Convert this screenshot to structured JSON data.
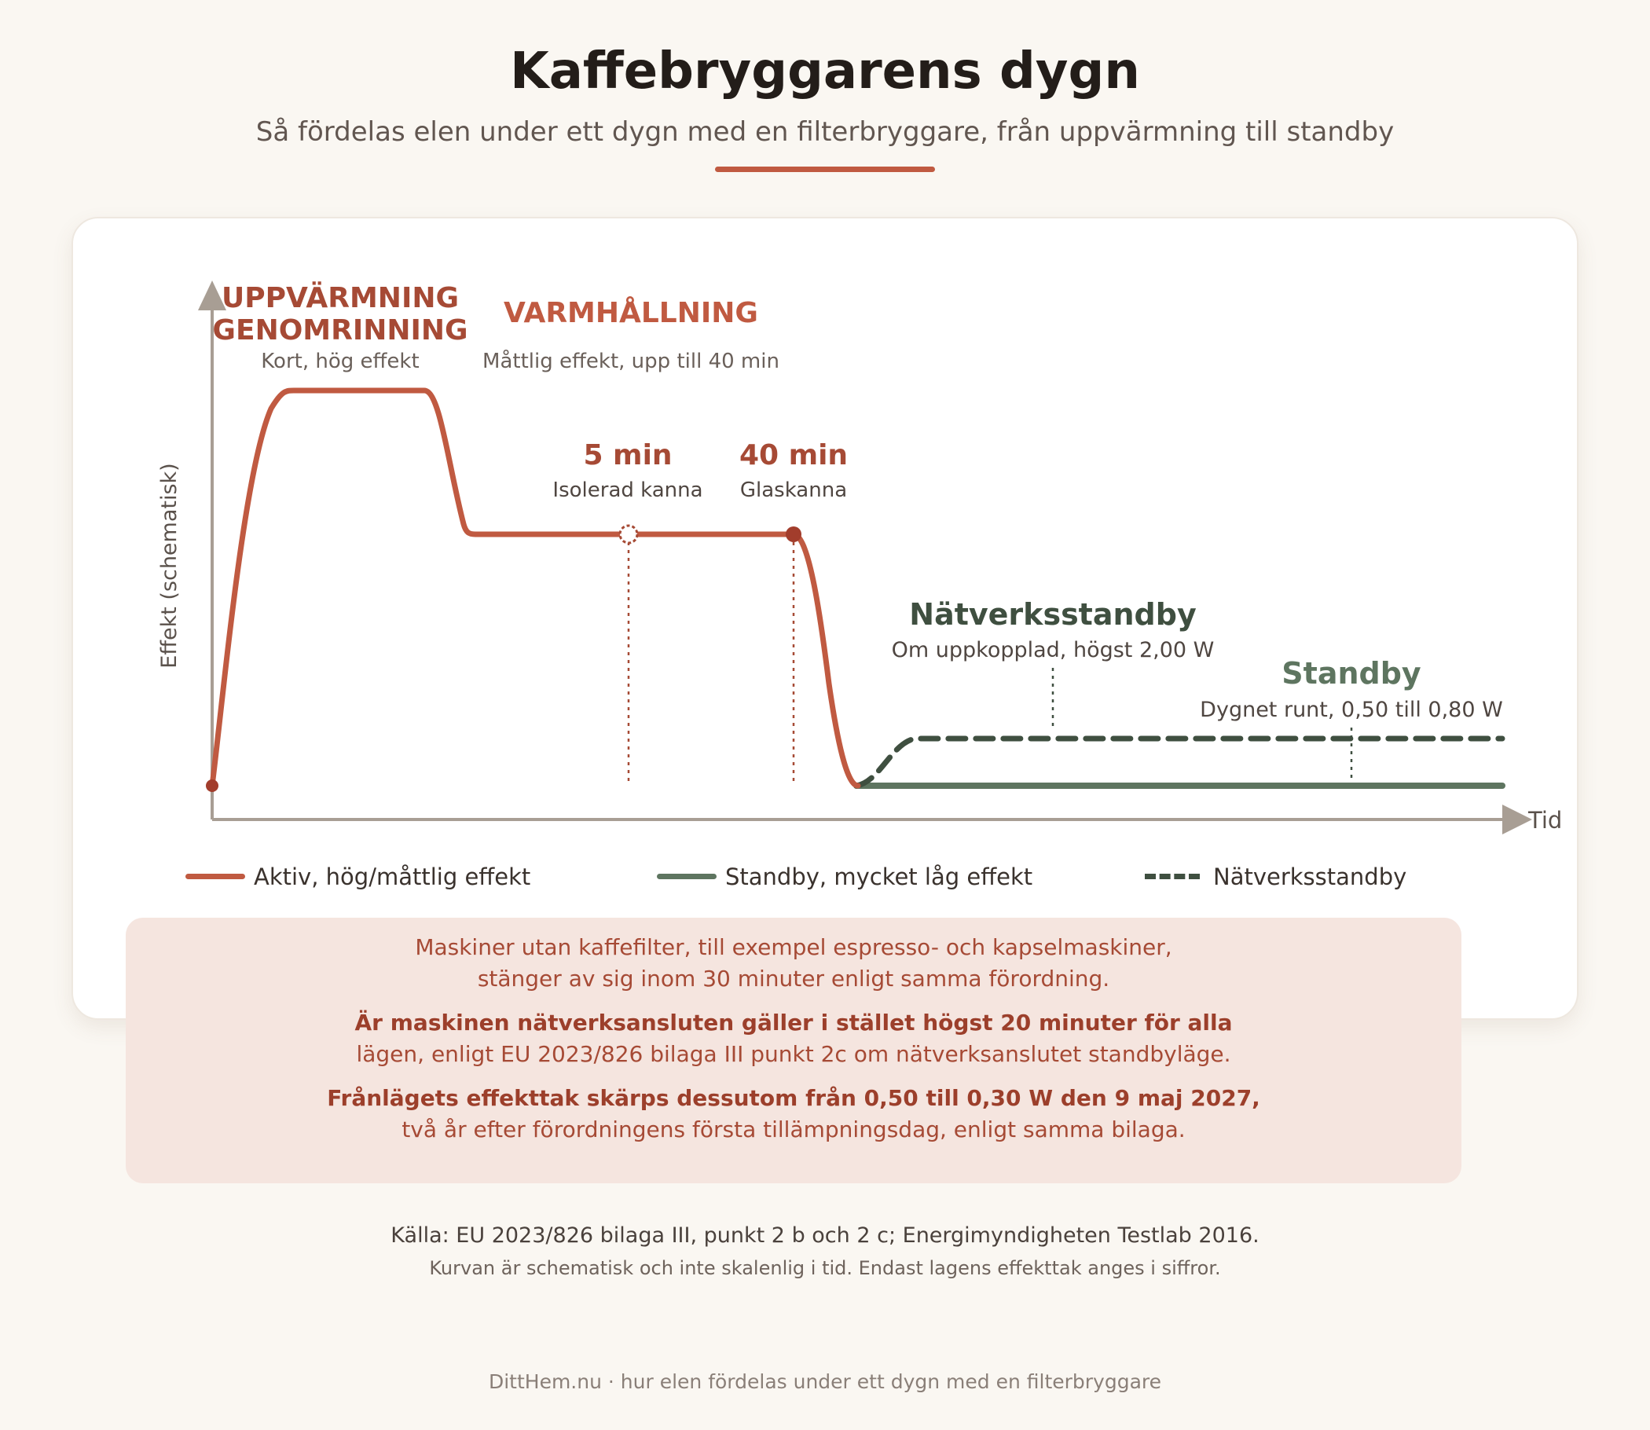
{
  "header": {
    "title": "Kaffebryggarens dygn",
    "subtitle": "Så fördelas elen under ett dygn med en filterbryggare, från uppvärmning till standby"
  },
  "chart": {
    "y_axis_label": "Effekt (schematisk)",
    "x_axis_label": "Tid",
    "phases": {
      "heating_title_line1": "UPPVÄRMNING",
      "heating_title_line2": "GENOMRINNING",
      "heating_sub": "Kort, hög effekt",
      "keepwarm_title": "VARMHÅLLNING",
      "keepwarm_sub": "Måttlig effekt, upp till 40 min"
    },
    "markers": {
      "insulated_time": "5 min",
      "insulated_label": "Isolerad kanna",
      "glass_time": "40 min",
      "glass_label": "Glaskanna"
    },
    "standby": {
      "network_title": "Nätverksstandby",
      "network_sub": "Om uppkopplad, högst 2,00 W",
      "standby_title": "Standby",
      "standby_sub": "Dygnet runt, 0,50 till 0,80 W"
    },
    "colors": {
      "active": "#c05a41",
      "active_dark": "#a23d2c",
      "standby": "#5e7560",
      "network": "#3f4f40",
      "axis": "#a89e94"
    }
  },
  "legend": {
    "active": "Aktiv, hög/måttlig effekt",
    "standby": "Standby, mycket låg effekt",
    "network": "Nätverksstandby"
  },
  "note": {
    "p1_line1": "Maskiner utan kaffefilter, till exempel espresso- och kapselmaskiner,",
    "p1_line2": "stänger av sig inom 30 minuter enligt samma förordning.",
    "p2_bold": "Är maskinen nätverksansluten gäller i stället högst 20 minuter för alla",
    "p2_line2": "lägen, enligt EU 2023/826 bilaga III punkt 2c om nätverksanslutet standbyläge.",
    "p3_bold": "Frånlägets effekttak skärps dessutom från 0,50 till 0,30 W den 9 maj 2027,",
    "p3_line2": "två år efter förordningens första tillämpningsdag, enligt samma bilaga."
  },
  "source": "Källa: EU 2023/826 bilaga III, punkt 2 b och 2 c; Energimyndigheten Testlab 2016.",
  "disclaimer": "Kurvan är schematisk och inte skalenlig i tid. Endast lagens effekttak anges i siffror.",
  "footer": "DittHem.nu · hur elen fördelas under ett dygn med en filterbryggare"
}
